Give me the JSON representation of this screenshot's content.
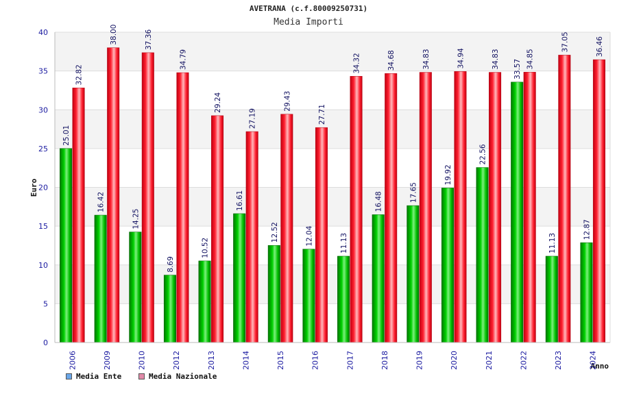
{
  "chart_data": {
    "type": "bar",
    "title": "AVETRANA (c.f.80009250731)",
    "subtitle": "Media Importi",
    "xlabel": "Anno",
    "ylabel": "Euro",
    "ylim": [
      0,
      40
    ],
    "yticks": [
      0,
      5,
      10,
      15,
      20,
      25,
      30,
      35,
      40
    ],
    "grid": true,
    "legend_position": "bottom-left",
    "categories": [
      "2006",
      "2009",
      "2010",
      "2012",
      "2013",
      "2014",
      "2015",
      "2016",
      "2017",
      "2018",
      "2019",
      "2020",
      "2021",
      "2022",
      "2023",
      "2024"
    ],
    "series": [
      {
        "name": "Media Ente",
        "color": "#00b400",
        "values": [
          25.01,
          16.42,
          14.25,
          8.69,
          10.52,
          16.61,
          12.52,
          12.04,
          11.13,
          16.48,
          17.65,
          19.92,
          22.56,
          33.57,
          11.13,
          12.87
        ],
        "labels": [
          "25.01",
          "16.42",
          "14.25",
          "8.69",
          "10.52",
          "16.61",
          "12.52",
          "12.04",
          "11.13",
          "16.48",
          "17.65",
          "19.92",
          "22.56",
          "33.57",
          "11.13",
          "12.87"
        ]
      },
      {
        "name": "Media Nazionale",
        "color": "#e8202a",
        "values": [
          32.82,
          38.0,
          37.36,
          34.79,
          29.24,
          27.19,
          29.43,
          27.71,
          34.32,
          34.68,
          34.83,
          34.94,
          34.83,
          34.85,
          37.05,
          36.46
        ],
        "labels": [
          "32.82",
          "38.00",
          "37.36",
          "34.79",
          "29.24",
          "27.19",
          "29.43",
          "27.71",
          "34.32",
          "34.68",
          "34.83",
          "34.94",
          "34.83",
          "34.85",
          "37.05",
          "36.46"
        ]
      }
    ],
    "legend": [
      {
        "label": "Media Ente",
        "swatch_color": "#6aa6e8"
      },
      {
        "label": "Media Nazionale",
        "swatch_color": "#e08aa8"
      }
    ]
  }
}
